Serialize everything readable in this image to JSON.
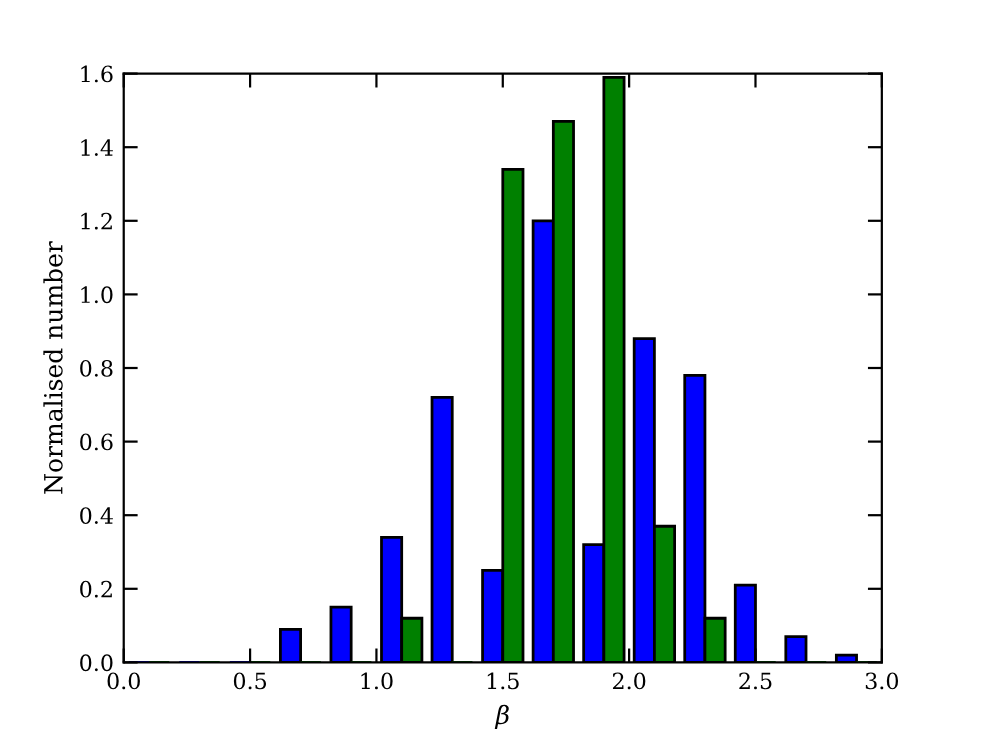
{
  "chart_data": {
    "type": "histogram",
    "xlabel": "β",
    "ylabel": "Normalised number",
    "bins": [
      0.0,
      0.2,
      0.4,
      0.6,
      0.8,
      1.0,
      1.2,
      1.4,
      1.6,
      1.8,
      2.0,
      2.2,
      2.4,
      2.6,
      2.8,
      3.0
    ],
    "series": [
      {
        "color": "#0000ff",
        "values": [
          0,
          0,
          0,
          0.09,
          0.15,
          0.34,
          0.72,
          0.25,
          1.2,
          0.32,
          0.88,
          0.78,
          0.21,
          0.07,
          0.02
        ]
      },
      {
        "color": "#008000",
        "values": [
          0,
          0,
          0,
          0,
          0,
          0.12,
          0,
          1.34,
          1.47,
          1.59,
          0.37,
          0.12,
          0,
          0,
          0
        ]
      }
    ],
    "xlim": [
      0,
      3.0
    ],
    "xticks": [
      {
        "value": 0,
        "label": "0.0"
      },
      {
        "value": 0.5,
        "label": "0.5"
      },
      {
        "value": 1.0,
        "label": "1.0"
      },
      {
        "value": 1.5,
        "label": "1.5"
      },
      {
        "value": 2.0,
        "label": "2.0"
      },
      {
        "value": 2.5,
        "label": "2.5"
      },
      {
        "value": 3.0,
        "label": "3.0"
      }
    ],
    "ylim": [
      0,
      1.6
    ],
    "yticks": [
      {
        "value": 0,
        "label": "0.0"
      },
      {
        "value": 0.2,
        "label": "0.2"
      },
      {
        "value": 0.4,
        "label": "0.4"
      },
      {
        "value": 0.6,
        "label": "0.6"
      },
      {
        "value": 0.8,
        "label": "0.8"
      },
      {
        "value": 1.0,
        "label": "1.0"
      },
      {
        "value": 1.2,
        "label": "1.2"
      },
      {
        "value": 1.4,
        "label": "1.4"
      },
      {
        "value": 1.6,
        "label": "1.6"
      }
    ],
    "grid": false
  }
}
